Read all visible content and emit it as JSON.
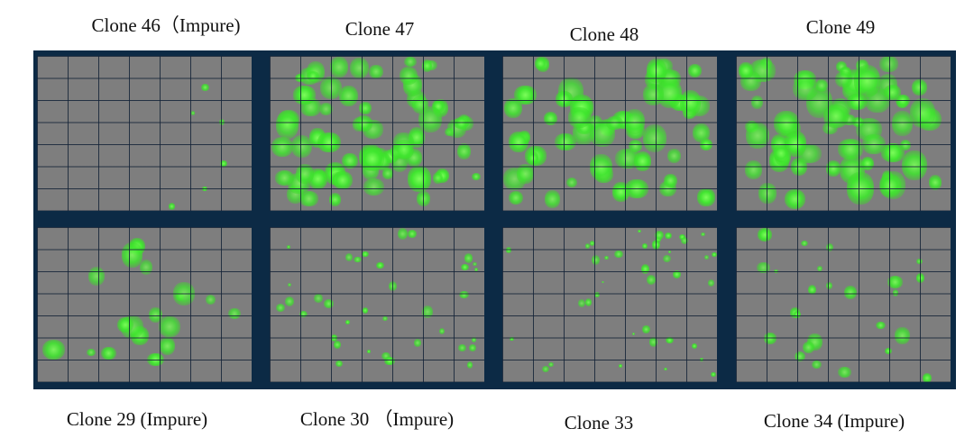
{
  "top_labels": [
    "Clone 46（Impure)",
    "Clone 47",
    "Clone 48",
    "Clone 49"
  ],
  "bottom_labels": [
    "Clone 29 (Impure)",
    "Clone 30 （Impure)",
    "Clone 33",
    "Clone 34 (Impure)"
  ],
  "colors": {
    "frame": "#0c2a45",
    "background": "#7e7e7e",
    "colony": "#3fe62e"
  },
  "grid": {
    "columns": 7,
    "rows": 7
  }
}
